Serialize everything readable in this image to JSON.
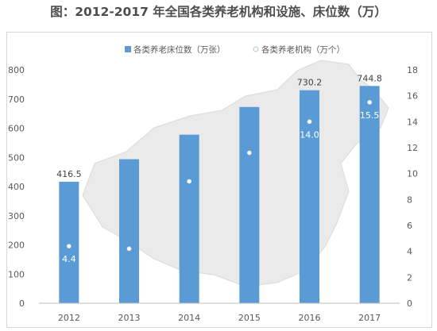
{
  "header": {
    "title": "图：2012-2017 年全国各类养老机构和设施、床位数（万）"
  },
  "chart_data": {
    "type": "bar",
    "categories": [
      "2012",
      "2013",
      "2014",
      "2015",
      "2016",
      "2017"
    ],
    "series": [
      {
        "name": "各类养老床位数（万张）",
        "kind": "bar",
        "axis": "left",
        "color": "#5b9bd5",
        "values": [
          416.5,
          493.7,
          577.8,
          672.7,
          730.2,
          744.8
        ],
        "data_labels": [
          "416.5",
          null,
          null,
          null,
          "730.2",
          "744.8"
        ]
      },
      {
        "name": "各类养老机构（万个）",
        "kind": "scatter",
        "axis": "right",
        "color": "#ffffff",
        "values": [
          4.4,
          4.2,
          9.4,
          11.6,
          14.0,
          15.5
        ],
        "data_labels": [
          "4.4",
          null,
          null,
          null,
          "14.0",
          "15.5"
        ]
      }
    ],
    "y_left": {
      "ylim": [
        0,
        800
      ],
      "ticks": [
        "0",
        "100",
        "200",
        "300",
        "400",
        "500",
        "600",
        "700",
        "800"
      ]
    },
    "y_right": {
      "ylim": [
        0,
        18
      ],
      "ticks": [
        "0",
        "2",
        "4",
        "6",
        "8",
        "10",
        "12",
        "14",
        "16",
        "18"
      ]
    },
    "legend": {
      "position": "top"
    },
    "grid": false,
    "background_map": true
  }
}
